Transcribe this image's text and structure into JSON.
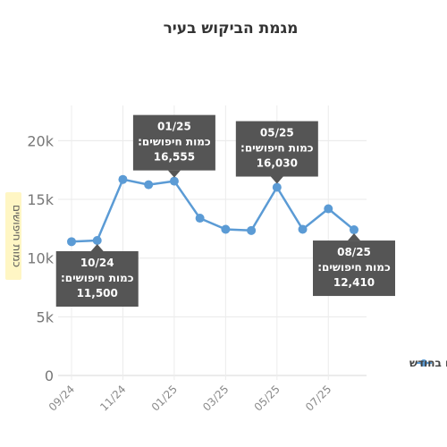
{
  "chart_data": {
    "type": "line",
    "title": "מגמת הביקוש בעיר",
    "ylabel": "כמות חיפושים",
    "xlabel": "",
    "ylim": [
      0,
      23000
    ],
    "y_ticks": [
      "0",
      "5k",
      "10k",
      "15k",
      "20k"
    ],
    "y_tick_values": [
      0,
      5000,
      10000,
      15000,
      20000
    ],
    "x_tick_labels": [
      "09/24",
      "11/24",
      "01/25",
      "03/25",
      "05/25",
      "07/25"
    ],
    "x_tick_index": [
      0,
      2,
      4,
      6,
      8,
      10
    ],
    "categories": [
      "09/24",
      "10/24",
      "11/24",
      "12/24",
      "01/25",
      "02/25",
      "03/25",
      "04/25",
      "05/25",
      "06/25",
      "07/25",
      "08/25"
    ],
    "series": [
      {
        "name": "חיפושים בחודש",
        "color": "#5b9bd5",
        "values": [
          11400,
          11500,
          16700,
          16250,
          16555,
          13400,
          12450,
          12350,
          16030,
          12450,
          14200,
          12410
        ]
      }
    ],
    "callouts": [
      {
        "index": 4,
        "label": "01/25",
        "metric": "כמות חיפושים:",
        "value": "16,555",
        "placement": "above"
      },
      {
        "index": 8,
        "label": "05/25",
        "metric": "כמות חיפושים:",
        "value": "16,030",
        "placement": "above"
      },
      {
        "index": 1,
        "label": "10/24",
        "metric": "כמות חיפושים:",
        "value": "11,500",
        "placement": "below"
      },
      {
        "index": 11,
        "label": "08/25",
        "metric": "כמות חיפושים:",
        "value": "12,410",
        "placement": "below"
      }
    ],
    "legend_position": "right",
    "grid": true
  }
}
